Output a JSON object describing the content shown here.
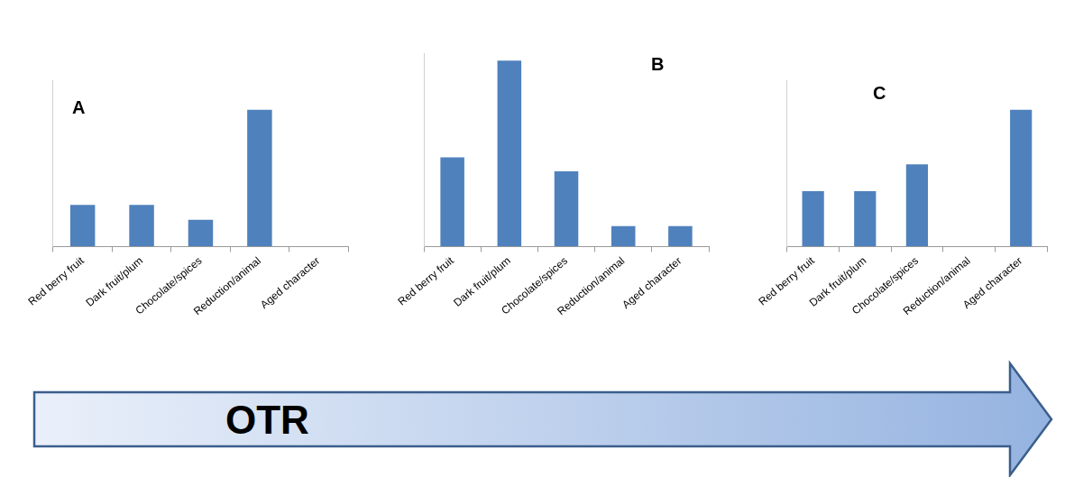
{
  "chart_data": [
    {
      "type": "bar",
      "title": "A",
      "categories": [
        "Red berry fruit",
        "Dark fruit/plum",
        "Chocolate/spices",
        "Reduction/animal",
        "Aged character"
      ],
      "values": [
        4.5,
        4.5,
        2.9,
        14.8,
        0
      ],
      "color": "#4f81bd",
      "ylim": [
        0,
        18
      ],
      "grid": false,
      "tick_labels": "x"
    },
    {
      "type": "bar",
      "title": "B",
      "categories": [
        "Red berry fruit",
        "Dark fruit/plum",
        "Chocolate/spices",
        "Reduction/animal",
        "Aged character"
      ],
      "values": [
        8.3,
        17.3,
        7.0,
        1.9,
        1.9
      ],
      "color": "#4f81bd",
      "ylim": [
        0,
        18
      ],
      "grid": false,
      "tick_labels": "x"
    },
    {
      "type": "bar",
      "title": "C",
      "categories": [
        "Red berry fruit",
        "Dark fruit/plum",
        "Chocolate/spices",
        "Reduction/animal",
        "Aged character"
      ],
      "values": [
        6.0,
        6.0,
        8.9,
        0,
        14.8
      ],
      "color": "#4f81bd",
      "ylim": [
        0,
        18
      ],
      "grid": false,
      "tick_labels": "x"
    }
  ],
  "arrow": {
    "label": "OTR"
  }
}
